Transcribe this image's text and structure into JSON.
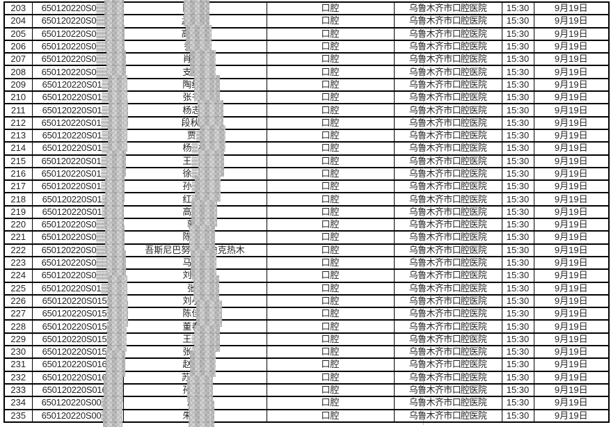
{
  "document": {
    "kind": "appointment-roster-table",
    "department_label": "口腔",
    "hospital_label": "乌鲁木齐市口腔医院",
    "time_label": "15:30",
    "date_label": "9月19日"
  },
  "colors": {
    "border": "#000000",
    "text": "#242424",
    "mosaic_light": "#cfcfcf",
    "mosaic_dark": "#b3b3b3",
    "background": "#ffffff"
  },
  "table": {
    "rows": [
      {
        "no": "203",
        "id": "650120220S0▒▒2",
        "name": "陈▒永",
        "dept": "口腔",
        "hospital": "乌鲁木齐市口腔医院",
        "time": "15:30",
        "date": "9月19日"
      },
      {
        "no": "204",
        "id": "650120220S0▒▒3",
        "name": "孟美晴",
        "dept": "口腔",
        "hospital": "乌鲁木齐市口腔医院",
        "time": "15:30",
        "date": "9月19日"
      },
      {
        "no": "205",
        "id": "650120220S0▒▒4",
        "name": "高鑫鑫",
        "dept": "口腔",
        "hospital": "乌鲁木齐市口腔医院",
        "time": "15:30",
        "date": "9月19日"
      },
      {
        "no": "206",
        "id": "650120220S0▒▒5",
        "name": "乔▒▒",
        "dept": "口腔",
        "hospital": "乌鲁木齐市口腔医院",
        "time": "15:30",
        "date": "9月19日"
      },
      {
        "no": "207",
        "id": "650120220S0▒▒6",
        "name": "肖智▒",
        "dept": "口腔",
        "hospital": "乌鲁木齐市口腔医院",
        "time": "15:30",
        "date": "9月19日"
      },
      {
        "no": "208",
        "id": "650120220S0▒▒7",
        "name": "支裕▒",
        "dept": "口腔",
        "hospital": "乌鲁木齐市口腔医院",
        "time": "15:30",
        "date": "9月19日"
      },
      {
        "no": "209",
        "id": "650120220S01▒8",
        "name": "陶红▒",
        "dept": "口腔",
        "hospital": "乌鲁木齐市口腔医院",
        "time": "15:30",
        "date": "9月19日"
      },
      {
        "no": "210",
        "id": "650120220S01▒9",
        "name": "张书▒",
        "dept": "口腔",
        "hospital": "乌鲁木齐市口腔医院",
        "time": "15:30",
        "date": "9月19日"
      },
      {
        "no": "211",
        "id": "650120220S01▒0",
        "name": "杨志▒",
        "dept": "口腔",
        "hospital": "乌鲁木齐市口腔医院",
        "time": "15:30",
        "date": "9月19日"
      },
      {
        "no": "212",
        "id": "650120220S01▒▒",
        "name": "段秋雨",
        "dept": "口腔",
        "hospital": "乌鲁木齐市口腔医院",
        "time": "15:30",
        "date": "9月19日"
      },
      {
        "no": "213",
        "id": "650120220S01▒2",
        "name": "贾▒",
        "dept": "口腔",
        "hospital": "乌鲁木齐市口腔医院",
        "time": "15:30",
        "date": "9月19日"
      },
      {
        "no": "214",
        "id": "650120220S01▒3",
        "name": "杨▒林",
        "dept": "口腔",
        "hospital": "乌鲁木齐市口腔医院",
        "time": "15:30",
        "date": "9月19日"
      },
      {
        "no": "215",
        "id": "650120220S01▒▒",
        "name": "王▒浩",
        "dept": "口腔",
        "hospital": "乌鲁木齐市口腔医院",
        "time": "15:30",
        "date": "9月19日"
      },
      {
        "no": "216",
        "id": "650120220S01▒▒",
        "name": "徐▒明",
        "dept": "口腔",
        "hospital": "乌鲁木齐市口腔医院",
        "time": "15:30",
        "date": "9月19日"
      },
      {
        "no": "217",
        "id": "650120220S01▒▒",
        "name": "孙▒霞",
        "dept": "口腔",
        "hospital": "乌鲁木齐市口腔医院",
        "time": "15:30",
        "date": "9月19日"
      },
      {
        "no": "218",
        "id": "650120220S01▒7",
        "name": "红▒林",
        "dept": "口腔",
        "hospital": "乌鲁木齐市口腔医院",
        "time": "15:30",
        "date": "9月19日"
      },
      {
        "no": "219",
        "id": "650120220S01▒8",
        "name": "高▒明",
        "dept": "口腔",
        "hospital": "乌鲁木齐市口腔医院",
        "time": "15:30",
        "date": "9月19日"
      },
      {
        "no": "220",
        "id": "650120220S0▒▒9",
        "name": "郭▒",
        "dept": "口腔",
        "hospital": "乌鲁木齐市口腔医院",
        "time": "15:30",
        "date": "9月19日"
      },
      {
        "no": "221",
        "id": "650120220S0▒▒0",
        "name": "陈▒申",
        "dept": "口腔",
        "hospital": "乌鲁木齐市口腔医院",
        "time": "15:30",
        "date": "9月19日"
      },
      {
        "no": "222",
        "id": "650120220S0▒▒1",
        "name": "吾斯尼巴努·▒布迪克热木",
        "dept": "口腔",
        "hospital": "乌鲁木齐市口腔医院",
        "time": "15:30",
        "date": "9月19日"
      },
      {
        "no": "223",
        "id": "650120220S0▒▒2",
        "name": "马▒晶",
        "dept": "口腔",
        "hospital": "乌鲁木齐市口腔医院",
        "time": "15:30",
        "date": "9月19日"
      },
      {
        "no": "224",
        "id": "650120220S0▒▒3",
        "name": "刘▒雪",
        "dept": "口腔",
        "hospital": "乌鲁木齐市口腔医院",
        "time": "15:30",
        "date": "9月19日"
      },
      {
        "no": "225",
        "id": "650120220S01▒▒",
        "name": "张▒",
        "dept": "口腔",
        "hospital": "乌鲁木齐市口腔医院",
        "time": "15:30",
        "date": "9月19日"
      },
      {
        "no": "226",
        "id": "650120220S015▒",
        "name": "刘小▒",
        "dept": "口腔",
        "hospital": "乌鲁木齐市口腔医院",
        "time": "15:30",
        "date": "9月19日"
      },
      {
        "no": "227",
        "id": "650120220S015▒",
        "name": "陈佳▒",
        "dept": "口腔",
        "hospital": "乌鲁木齐市口腔医院",
        "time": "15:30",
        "date": "9月19日"
      },
      {
        "no": "228",
        "id": "650120220S015▒",
        "name": "董春▒",
        "dept": "口腔",
        "hospital": "乌鲁木齐市口腔医院",
        "time": "15:30",
        "date": "9月19日"
      },
      {
        "no": "229",
        "id": "650120220S015▒",
        "name": "王▒言",
        "dept": "口腔",
        "hospital": "乌鲁木齐市口腔医院",
        "time": "15:30",
        "date": "9月19日"
      },
      {
        "no": "230",
        "id": "650120220S015▒",
        "name": "张▒蓉",
        "dept": "口腔",
        "hospital": "乌鲁木齐市口腔医院",
        "time": "15:30",
        "date": "9月19日"
      },
      {
        "no": "231",
        "id": "650120220S016▒",
        "name": "赵▒轩",
        "dept": "口腔",
        "hospital": "乌鲁木齐市口腔医院",
        "time": "15:30",
        "date": "9月19日"
      },
      {
        "no": "232",
        "id": "650120220S016▒",
        "name": "苏贝贝",
        "dept": "口腔",
        "hospital": "乌鲁木齐市口腔医院",
        "time": "15:30",
        "date": "9月19日"
      },
      {
        "no": "233",
        "id": "650120220S016▒",
        "name": "孙山▒",
        "dept": "口腔",
        "hospital": "乌鲁木齐市口腔医院",
        "time": "15:30",
        "date": "9月19日"
      },
      {
        "no": "234",
        "id": "650120220S00▒▒",
        "name": "周▒",
        "dept": "口腔",
        "hospital": "乌鲁木齐市口腔医院",
        "time": "15:30",
        "date": "9月19日"
      },
      {
        "no": "235",
        "id": "650120220S00▒▒",
        "name": "朱晓▒",
        "dept": "口腔",
        "hospital": "乌鲁木齐市口腔医院",
        "time": "15:30",
        "date": "9月19日"
      }
    ]
  }
}
